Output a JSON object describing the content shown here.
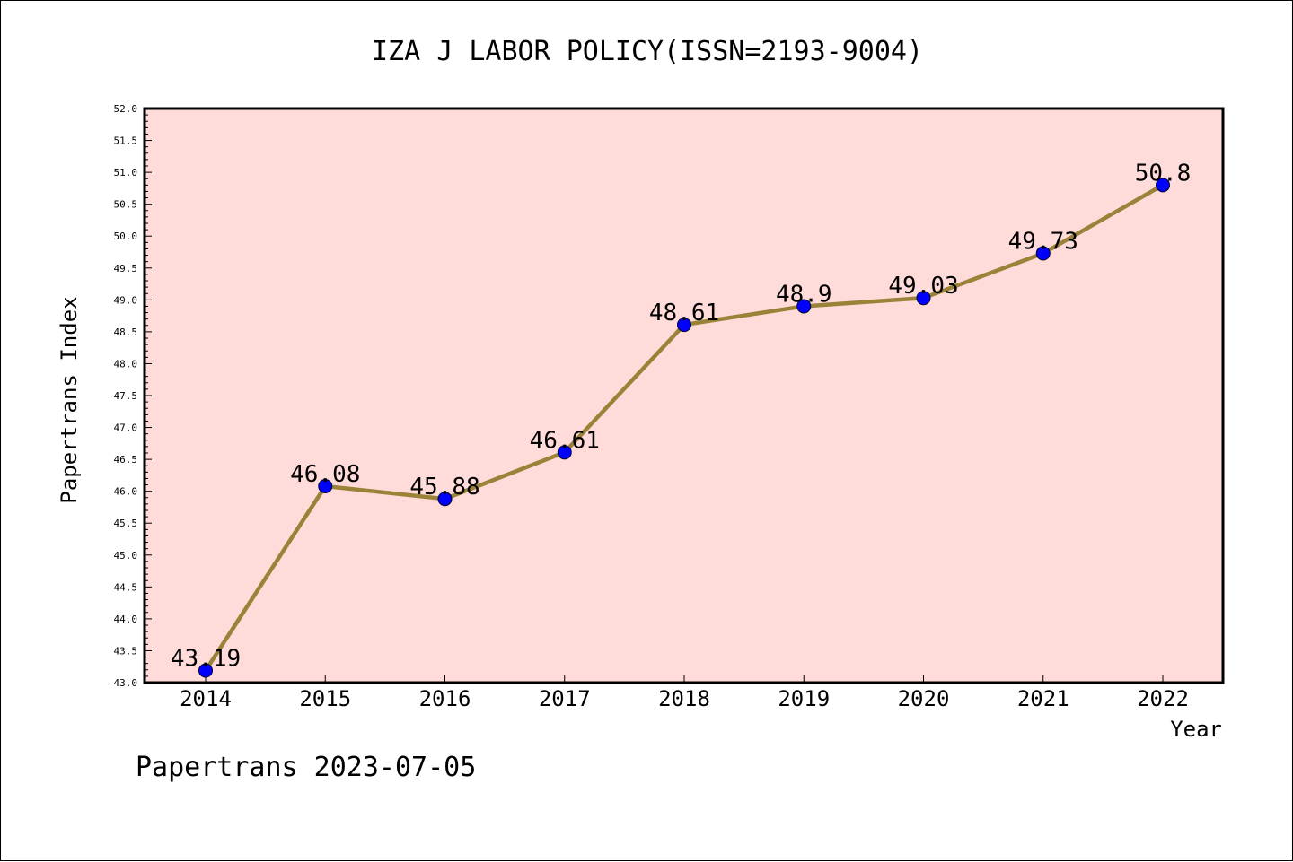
{
  "chart_data": {
    "type": "line",
    "title": "IZA J LABOR POLICY(ISSN=2193-9004)",
    "xlabel": "Year",
    "ylabel": "Papertrans Index",
    "x": [
      "2014",
      "2015",
      "2016",
      "2017",
      "2018",
      "2019",
      "2020",
      "2021",
      "2022"
    ],
    "series": [
      {
        "values": [
          43.19,
          46.08,
          45.88,
          46.61,
          48.61,
          48.9,
          49.03,
          49.73,
          50.8
        ],
        "labels": [
          "43.19",
          "46.08",
          "45.88",
          "46.61",
          "48.61",
          "48.9",
          "49.03",
          "49.73",
          "50.8"
        ]
      }
    ],
    "ylim": [
      43.0,
      52.0
    ],
    "yticks": [
      "43.0",
      "43.5",
      "44.0",
      "44.5",
      "45.0",
      "45.5",
      "46.0",
      "46.5",
      "47.0",
      "47.5",
      "48.0",
      "48.5",
      "49.0",
      "49.5",
      "50.0",
      "50.5",
      "51.0",
      "51.5",
      "52.0"
    ],
    "grid": false,
    "legend": "none",
    "colors": {
      "plot_background": "#ffdbd9",
      "line": "#9a8238",
      "marker": "#0000ff"
    }
  },
  "footer": "Papertrans 2023-07-05"
}
